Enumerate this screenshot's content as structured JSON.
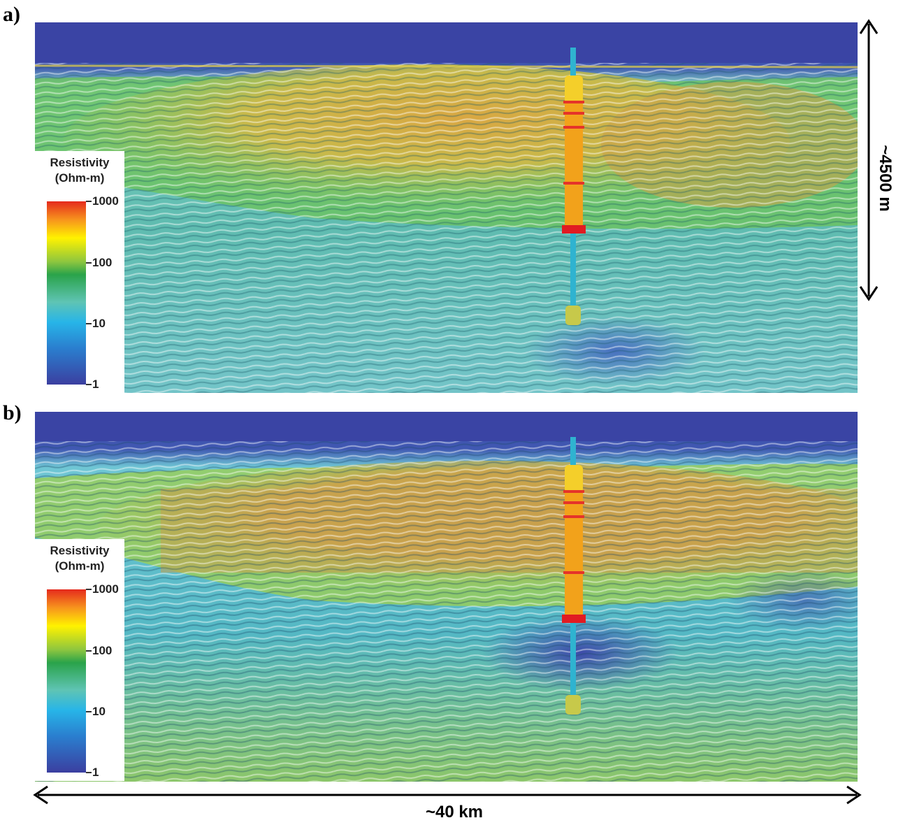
{
  "panels": [
    {
      "letter": "a)"
    },
    {
      "letter": "b)"
    }
  ],
  "legend": {
    "title_line1": "Resistivity",
    "title_line2": "(Ohm-m)",
    "ticks": [
      "1000",
      "100",
      "10",
      "1"
    ]
  },
  "scale": {
    "vertical": "~4500 m",
    "horizontal": "~40 km"
  }
}
